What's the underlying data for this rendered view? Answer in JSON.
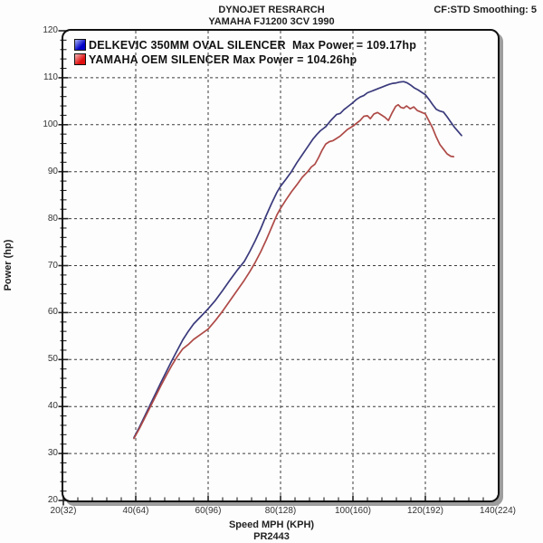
{
  "header": {
    "title_line1": "DYNOJET RESRARCH",
    "title_line2": "YAMAHA FJ1200 3CV 1990",
    "top_right": "CF:STD Smoothing: 5"
  },
  "chart_data": {
    "type": "line",
    "title": "DYNOJET RESRARCH",
    "subtitle": "YAMAHA FJ1200 3CV 1990",
    "xlabel": "Speed MPH (KPH)",
    "ylabel": "Power (hp)",
    "footnote": "PR2443",
    "xlim": [
      20,
      140
    ],
    "ylim": [
      20,
      120
    ],
    "x_tick_values": [
      20,
      40,
      60,
      80,
      100,
      120,
      140
    ],
    "x_tick_labels": [
      "20(32)",
      "40(64)",
      "60(96)",
      "80(128)",
      "100(160)",
      "120(192)",
      "140(224)"
    ],
    "x_minor_step": 4,
    "y_tick_values": [
      20,
      30,
      40,
      50,
      60,
      70,
      80,
      90,
      100,
      110,
      120
    ],
    "y_minor_step": 2,
    "grid": "dashed black at major ticks, both directions",
    "legend_position": "top-left inside plot",
    "series": [
      {
        "id": "delkevic",
        "name": "DELKEVIC 350MM OVAL SILENCER",
        "legend_label": "DELKEVIC 350MM OVAL SILENCER  Max Power = 109.17hp",
        "max_power_hp": 109.17,
        "color": "#3a3a7c",
        "swatch_colors": [
          "#aab6f2",
          "#0000c8"
        ],
        "points": [
          [
            39.5,
            33.4
          ],
          [
            41,
            35.6
          ],
          [
            42.5,
            38.0
          ],
          [
            44,
            40.4
          ],
          [
            45.5,
            42.8
          ],
          [
            47,
            45.2
          ],
          [
            48.5,
            47.5
          ],
          [
            50,
            49.8
          ],
          [
            51.5,
            52.0
          ],
          [
            53,
            54.2
          ],
          [
            54.5,
            56.0
          ],
          [
            56,
            57.6
          ],
          [
            58,
            59.2
          ],
          [
            60,
            60.8
          ],
          [
            62,
            62.6
          ],
          [
            64,
            64.7
          ],
          [
            66,
            66.9
          ],
          [
            68,
            69.0
          ],
          [
            70,
            70.9
          ],
          [
            71.5,
            73.0
          ],
          [
            73,
            75.3
          ],
          [
            74.5,
            77.8
          ],
          [
            76,
            80.6
          ],
          [
            77.5,
            83.2
          ],
          [
            79,
            85.6
          ],
          [
            80,
            86.9
          ],
          [
            81.5,
            88.4
          ],
          [
            83,
            90.0
          ],
          [
            84.5,
            91.9
          ],
          [
            86,
            93.6
          ],
          [
            87.5,
            95.3
          ],
          [
            89,
            97.0
          ],
          [
            90,
            97.9
          ],
          [
            91,
            98.7
          ],
          [
            92.5,
            99.6
          ],
          [
            94,
            101.0
          ],
          [
            95.5,
            102.2
          ],
          [
            96.5,
            102.4
          ],
          [
            97.5,
            103.2
          ],
          [
            99,
            104.1
          ],
          [
            100,
            104.7
          ],
          [
            101,
            105.4
          ],
          [
            102,
            105.9
          ],
          [
            103,
            106.2
          ],
          [
            104,
            106.8
          ],
          [
            105,
            107.1
          ],
          [
            106,
            107.4
          ],
          [
            107,
            107.7
          ],
          [
            108,
            108.0
          ],
          [
            109,
            108.3
          ],
          [
            110,
            108.6
          ],
          [
            111,
            108.8
          ],
          [
            112,
            108.9
          ],
          [
            113,
            109.1
          ],
          [
            114,
            109.17
          ],
          [
            115,
            108.9
          ],
          [
            116,
            108.4
          ],
          [
            117,
            107.8
          ],
          [
            118,
            107.4
          ],
          [
            119,
            106.9
          ],
          [
            120,
            106.4
          ],
          [
            121,
            105.4
          ],
          [
            122,
            104.3
          ],
          [
            123,
            103.3
          ],
          [
            124,
            102.9
          ],
          [
            125,
            102.7
          ],
          [
            126,
            101.7
          ],
          [
            127,
            100.6
          ],
          [
            128,
            99.5
          ],
          [
            129,
            98.6
          ],
          [
            130,
            97.7
          ]
        ]
      },
      {
        "id": "oem-yamaha",
        "name": "YAMAHA OEM SILENCER",
        "legend_label": "YAMAHA OEM SILENCER Max Power = 104.26hp",
        "max_power_hp": 104.26,
        "color": "#ae4a47",
        "swatch_colors": [
          "#f3b8b8",
          "#e01010"
        ],
        "points": [
          [
            39.5,
            33.2
          ],
          [
            41,
            35.3
          ],
          [
            42.5,
            37.6
          ],
          [
            44,
            39.9
          ],
          [
            45.5,
            42.2
          ],
          [
            47,
            44.5
          ],
          [
            48.5,
            46.7
          ],
          [
            50,
            48.8
          ],
          [
            51.5,
            50.7
          ],
          [
            53,
            52.3
          ],
          [
            54.5,
            53.2
          ],
          [
            56,
            54.3
          ],
          [
            58,
            55.4
          ],
          [
            60,
            56.5
          ],
          [
            62,
            58.3
          ],
          [
            64,
            60.3
          ],
          [
            66,
            62.5
          ],
          [
            68,
            64.7
          ],
          [
            70,
            66.9
          ],
          [
            71.5,
            68.7
          ],
          [
            73,
            70.7
          ],
          [
            74.5,
            72.9
          ],
          [
            76,
            75.4
          ],
          [
            77.5,
            78.1
          ],
          [
            79,
            80.8
          ],
          [
            80,
            82.2
          ],
          [
            81.5,
            84.0
          ],
          [
            83,
            85.7
          ],
          [
            84.5,
            87.2
          ],
          [
            86,
            88.8
          ],
          [
            87.5,
            90.0
          ],
          [
            88.5,
            91.0
          ],
          [
            89.5,
            91.6
          ],
          [
            90.5,
            93.0
          ],
          [
            91.5,
            94.6
          ],
          [
            92.5,
            95.9
          ],
          [
            93.5,
            96.4
          ],
          [
            94.5,
            96.6
          ],
          [
            95.5,
            97.1
          ],
          [
            96.5,
            97.6
          ],
          [
            97.5,
            98.3
          ],
          [
            98.5,
            99.0
          ],
          [
            100,
            99.7
          ],
          [
            101,
            100.3
          ],
          [
            102,
            100.9
          ],
          [
            103,
            101.8
          ],
          [
            104,
            101.9
          ],
          [
            104.8,
            101.3
          ],
          [
            105.8,
            102.3
          ],
          [
            106.8,
            102.6
          ],
          [
            107.8,
            102.1
          ],
          [
            108.8,
            101.6
          ],
          [
            109.8,
            100.9
          ],
          [
            110.8,
            102.5
          ],
          [
            111.8,
            103.9
          ],
          [
            112.5,
            104.26
          ],
          [
            113.2,
            103.7
          ],
          [
            114,
            103.5
          ],
          [
            114.8,
            104.0
          ],
          [
            115.8,
            103.4
          ],
          [
            116.8,
            103.8
          ],
          [
            117.8,
            103.0
          ],
          [
            118.8,
            102.7
          ],
          [
            120,
            102.3
          ],
          [
            121,
            100.8
          ],
          [
            122,
            99.3
          ],
          [
            123,
            97.4
          ],
          [
            124,
            95.8
          ],
          [
            125,
            94.8
          ],
          [
            126,
            93.8
          ],
          [
            127,
            93.3
          ],
          [
            127.8,
            93.2
          ]
        ]
      }
    ]
  }
}
